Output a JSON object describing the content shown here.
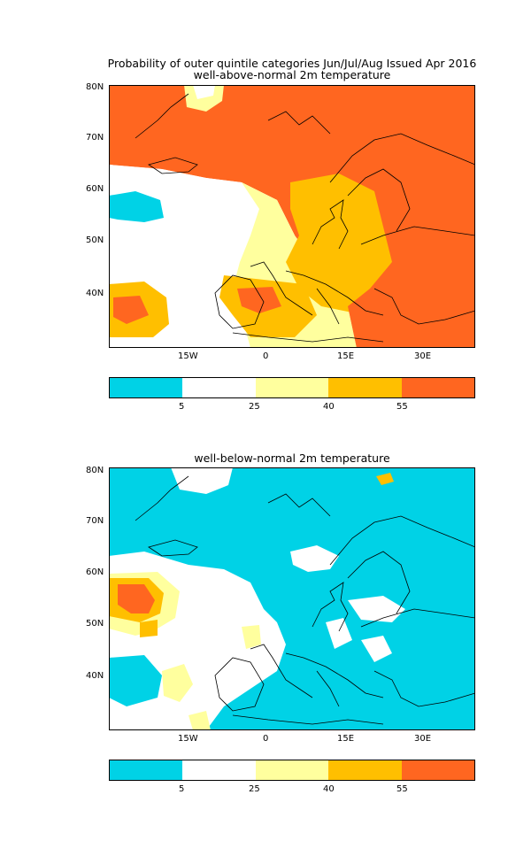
{
  "title": "Probability of outer quintile categories Jun/Jul/Aug Issued Apr 2016",
  "panels": [
    {
      "subtitle": "well-above-normal 2m temperature"
    },
    {
      "subtitle": "well-below-normal 2m temperature"
    }
  ],
  "lat_labels": [
    "80N",
    "70N",
    "60N",
    "50N",
    "40N"
  ],
  "lon_labels": [
    "15W",
    "0",
    "15E",
    "30E"
  ],
  "colorbar": {
    "colors": [
      "#00d2e6",
      "#ffffff",
      "#ffff9e",
      "#ffbf00",
      "#ff6620"
    ],
    "labels": [
      "5",
      "25",
      "40",
      "55"
    ]
  }
}
